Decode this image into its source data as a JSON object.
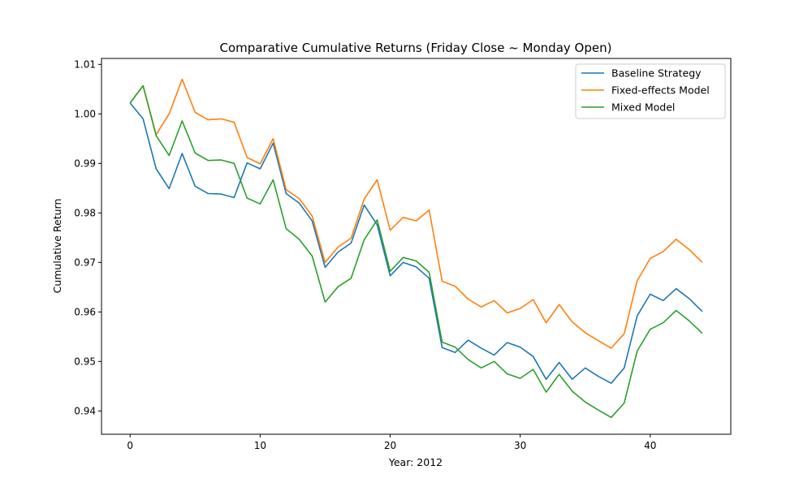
{
  "chart_data": {
    "type": "line",
    "title": "Comparative Cumulative Returns (Friday Close ~ Monday Open)",
    "xlabel": "Year: 2012",
    "ylabel": "Cumulative Return",
    "xlim": [
      -2.2,
      46.2
    ],
    "ylim": [
      0.9353,
      1.0112
    ],
    "x_ticks": [
      0,
      10,
      20,
      30,
      40
    ],
    "y_ticks": [
      0.94,
      0.95,
      0.96,
      0.97,
      0.98,
      0.99,
      1.0,
      1.01
    ],
    "y_tick_labels": [
      "0.94",
      "0.95",
      "0.96",
      "0.97",
      "0.98",
      "0.99",
      "1.00",
      "1.01"
    ],
    "grid": false,
    "legend_position": "top-right",
    "x": [
      0,
      1,
      2,
      3,
      4,
      5,
      6,
      7,
      8,
      9,
      10,
      11,
      12,
      13,
      14,
      15,
      16,
      17,
      18,
      19,
      20,
      21,
      22,
      23,
      24,
      25,
      26,
      27,
      28,
      29,
      30,
      31,
      32,
      33,
      34,
      35,
      36,
      37,
      38,
      39,
      40,
      41,
      42,
      43,
      44
    ],
    "series": [
      {
        "name": "Baseline Strategy",
        "color": "#1f77b4",
        "values": [
          1.0022,
          0.999,
          0.9889,
          0.9849,
          0.992,
          0.9854,
          0.9839,
          0.9838,
          0.9831,
          0.9901,
          0.9889,
          0.9941,
          0.9839,
          0.982,
          0.9784,
          0.969,
          0.9721,
          0.9739,
          0.9816,
          0.9776,
          0.9673,
          0.97,
          0.9691,
          0.9668,
          0.9528,
          0.9518,
          0.9543,
          0.9527,
          0.9513,
          0.9538,
          0.9529,
          0.951,
          0.9464,
          0.9498,
          0.9464,
          0.9487,
          0.947,
          0.9456,
          0.9487,
          0.9592,
          0.9636,
          0.9623,
          0.9647,
          0.9627,
          0.9601
        ]
      },
      {
        "name": "Fixed-effects Model",
        "color": "#ff7f0e",
        "values": [
          1.0022,
          1.0057,
          0.9958,
          1.0,
          1.007,
          1.0003,
          0.9988,
          0.999,
          0.9983,
          0.9912,
          0.9899,
          0.995,
          0.9847,
          0.9829,
          0.9794,
          0.97,
          0.9731,
          0.9749,
          0.9828,
          0.9867,
          0.9765,
          0.9791,
          0.9784,
          0.9806,
          0.9662,
          0.9652,
          0.9626,
          0.961,
          0.9623,
          0.9598,
          0.9607,
          0.9625,
          0.9578,
          0.9615,
          0.958,
          0.9558,
          0.9542,
          0.9527,
          0.9556,
          0.9663,
          0.9708,
          0.9722,
          0.9747,
          0.9726,
          0.97
        ]
      },
      {
        "name": "Mixed Model",
        "color": "#2ca02c",
        "values": [
          1.0022,
          1.0057,
          0.9956,
          0.9916,
          0.9986,
          0.9921,
          0.9906,
          0.9907,
          0.99,
          0.983,
          0.9818,
          0.9867,
          0.9768,
          0.9747,
          0.9713,
          0.962,
          0.9651,
          0.9668,
          0.9746,
          0.9786,
          0.9682,
          0.971,
          0.9703,
          0.968,
          0.9539,
          0.9529,
          0.9504,
          0.9487,
          0.95,
          0.9475,
          0.9466,
          0.9484,
          0.9438,
          0.9474,
          0.944,
          0.9418,
          0.9402,
          0.9387,
          0.9416,
          0.9521,
          0.9565,
          0.9578,
          0.9603,
          0.9582,
          0.9557
        ]
      }
    ]
  }
}
